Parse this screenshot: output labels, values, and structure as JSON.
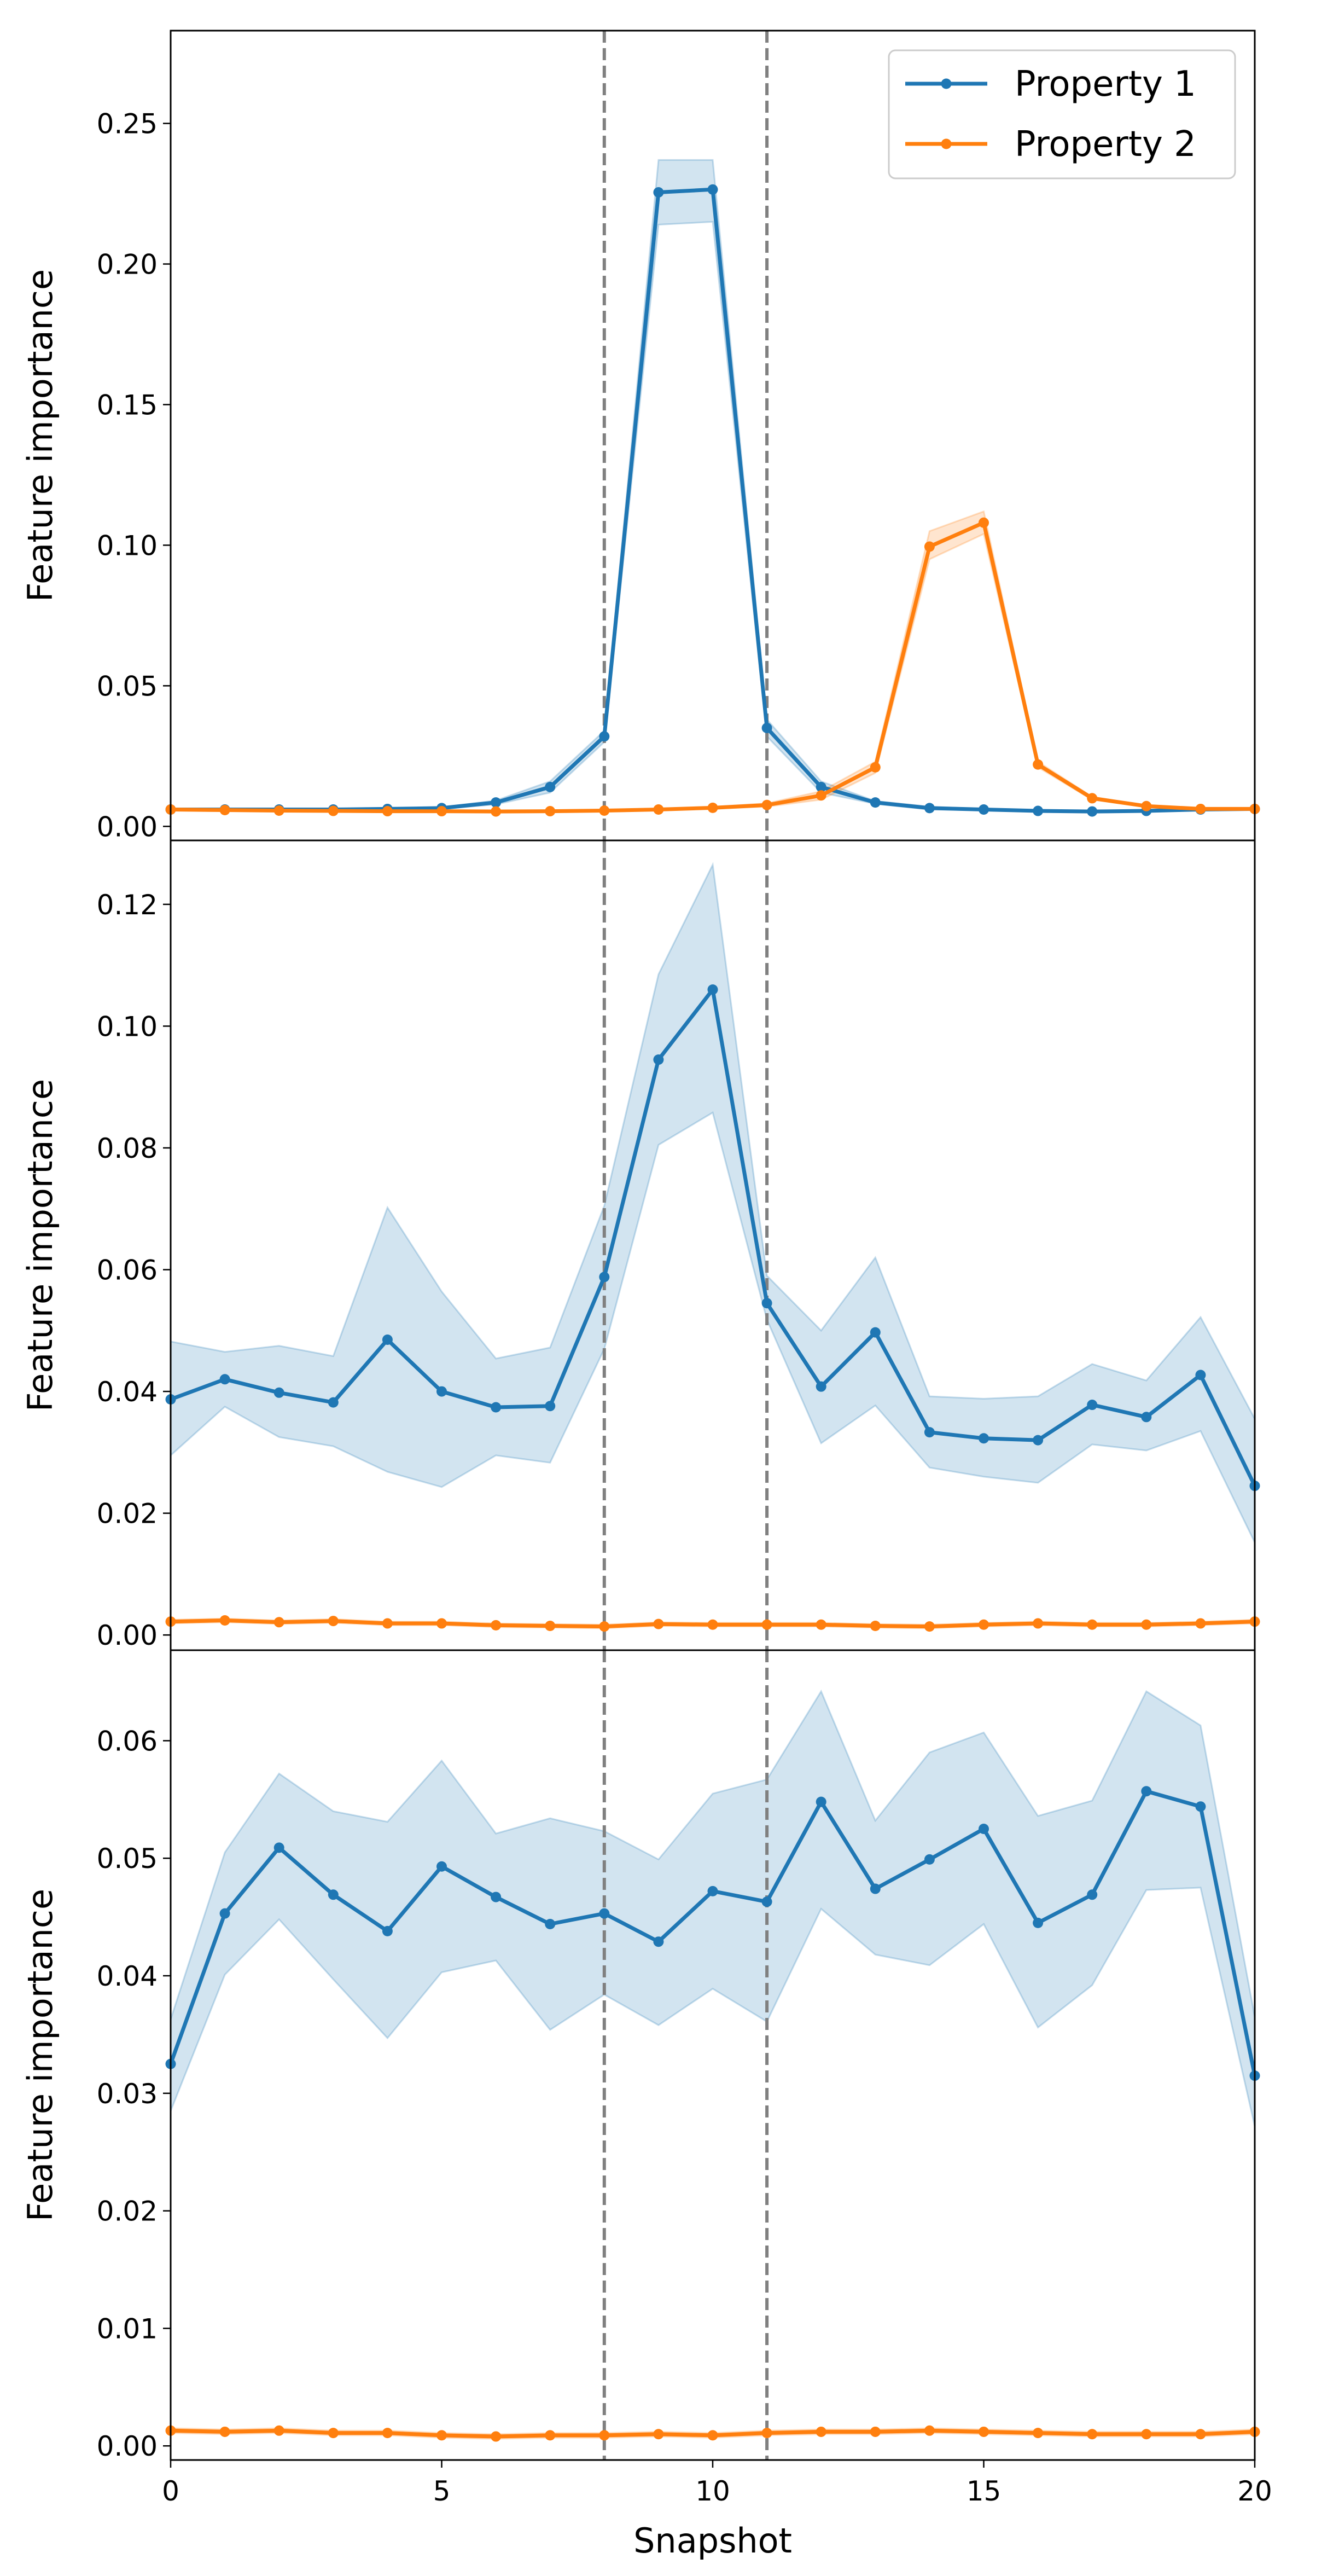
{
  "chart_data": {
    "type": "line",
    "xlabel": "Snapshot",
    "xlim": [
      0,
      20
    ],
    "x_ticks": [
      "0",
      "5",
      "10",
      "15",
      "20"
    ],
    "vertical_lines": [
      8,
      11
    ],
    "legend": {
      "location": "top-right",
      "entries": [
        {
          "label": "Property 1",
          "color": "#1f77b4"
        },
        {
          "label": "Property 2",
          "color": "#ff7f0e"
        }
      ]
    },
    "colors": {
      "series_1": "#1f77b4",
      "series_2": "#ff7f0e",
      "vline": "#808080"
    },
    "x": [
      0,
      1,
      2,
      3,
      4,
      5,
      6,
      7,
      8,
      9,
      10,
      11,
      12,
      13,
      14,
      15,
      16,
      17,
      18,
      19,
      20
    ],
    "panels": [
      {
        "ylabel": "Feature importance",
        "ylim": [
          -0.005,
          0.283
        ],
        "y_ticks": [
          "0.00",
          "0.05",
          "0.10",
          "0.15",
          "0.20",
          "0.25"
        ],
        "series": [
          {
            "name": "Property 1",
            "values": [
              0.006,
              0.006,
              0.006,
              0.006,
              0.0062,
              0.0065,
              0.0085,
              0.014,
              0.032,
              0.2255,
              0.2265,
              0.035,
              0.014,
              0.0085,
              0.0065,
              0.006,
              0.0055,
              0.0053,
              0.0055,
              0.006,
              0.0062
            ],
            "lower": [
              0.0058,
              0.0058,
              0.0058,
              0.0058,
              0.006,
              0.0062,
              0.0078,
              0.012,
              0.03,
              0.214,
              0.215,
              0.032,
              0.012,
              0.008,
              0.006,
              0.0058,
              0.0053,
              0.0051,
              0.0053,
              0.0058,
              0.006
            ],
            "upper": [
              0.0062,
              0.0062,
              0.0062,
              0.0062,
              0.0064,
              0.0068,
              0.0092,
              0.016,
              0.034,
              0.237,
              0.237,
              0.038,
              0.016,
              0.009,
              0.007,
              0.0062,
              0.0057,
              0.0055,
              0.0057,
              0.0062,
              0.0064
            ]
          },
          {
            "name": "Property 2",
            "values": [
              0.006,
              0.0058,
              0.0056,
              0.0055,
              0.0054,
              0.0054,
              0.0053,
              0.0054,
              0.0056,
              0.006,
              0.0066,
              0.0076,
              0.011,
              0.021,
              0.0995,
              0.108,
              0.022,
              0.01,
              0.0072,
              0.0062,
              0.0062
            ],
            "lower": [
              0.0058,
              0.0056,
              0.0054,
              0.0053,
              0.0052,
              0.0052,
              0.0051,
              0.0052,
              0.0054,
              0.0058,
              0.0063,
              0.007,
              0.0095,
              0.019,
              0.095,
              0.104,
              0.021,
              0.0095,
              0.007,
              0.006,
              0.006
            ],
            "upper": [
              0.0062,
              0.006,
              0.0058,
              0.0057,
              0.0056,
              0.0056,
              0.0055,
              0.0056,
              0.0058,
              0.0062,
              0.0069,
              0.0082,
              0.0125,
              0.023,
              0.105,
              0.112,
              0.023,
              0.0105,
              0.0074,
              0.0064,
              0.0064
            ]
          }
        ]
      },
      {
        "ylabel": "Feature importance",
        "ylim": [
          -0.0025,
          0.1305
        ],
        "y_ticks": [
          "0.00",
          "0.02",
          "0.04",
          "0.06",
          "0.08",
          "0.10",
          "0.12"
        ],
        "series": [
          {
            "name": "Property 1",
            "values": [
              0.0387,
              0.042,
              0.0398,
              0.0382,
              0.0485,
              0.04,
              0.0374,
              0.0376,
              0.0588,
              0.0945,
              0.106,
              0.0545,
              0.0408,
              0.0497,
              0.0333,
              0.0323,
              0.032,
              0.0378,
              0.0358,
              0.0427,
              0.0245
            ],
            "lower": [
              0.0295,
              0.0375,
              0.0325,
              0.031,
              0.0268,
              0.0243,
              0.0295,
              0.0283,
              0.047,
              0.0805,
              0.0858,
              0.0518,
              0.0315,
              0.0377,
              0.0275,
              0.026,
              0.025,
              0.0313,
              0.0303,
              0.0335,
              0.0152
            ],
            "upper": [
              0.0482,
              0.0465,
              0.0475,
              0.0458,
              0.0702,
              0.0564,
              0.0454,
              0.0472,
              0.0705,
              0.1085,
              0.1265,
              0.059,
              0.05,
              0.062,
              0.0392,
              0.0388,
              0.0392,
              0.0445,
              0.0418,
              0.0522,
              0.0355
            ]
          },
          {
            "name": "Property 2",
            "values": [
              0.0022,
              0.0024,
              0.0021,
              0.0023,
              0.0019,
              0.0019,
              0.0016,
              0.0015,
              0.0014,
              0.0018,
              0.0017,
              0.0017,
              0.0017,
              0.0015,
              0.0014,
              0.0017,
              0.0019,
              0.0017,
              0.0017,
              0.0019,
              0.0022
            ],
            "lower": [
              0.0019,
              0.0021,
              0.0018,
              0.002,
              0.0016,
              0.0016,
              0.0013,
              0.0012,
              0.0011,
              0.0015,
              0.0014,
              0.0014,
              0.0014,
              0.0012,
              0.0011,
              0.0014,
              0.0016,
              0.0014,
              0.0014,
              0.0016,
              0.0019
            ],
            "upper": [
              0.0025,
              0.0027,
              0.0024,
              0.0026,
              0.0022,
              0.0022,
              0.0019,
              0.0018,
              0.0017,
              0.0021,
              0.002,
              0.002,
              0.002,
              0.0018,
              0.0017,
              0.002,
              0.0022,
              0.002,
              0.002,
              0.0022,
              0.0025
            ]
          }
        ]
      },
      {
        "ylabel": "Feature importance",
        "ylim": [
          -0.0012,
          0.0677
        ],
        "y_ticks": [
          "0.00",
          "0.01",
          "0.02",
          "0.03",
          "0.04",
          "0.05",
          "0.06"
        ],
        "series": [
          {
            "name": "Property 1",
            "values": [
              0.0325,
              0.0453,
              0.0509,
              0.0469,
              0.0438,
              0.0493,
              0.0467,
              0.0444,
              0.0453,
              0.0429,
              0.0472,
              0.0463,
              0.0548,
              0.0474,
              0.0499,
              0.0525,
              0.0445,
              0.0469,
              0.0557,
              0.0544,
              0.0315
            ],
            "lower": [
              0.0285,
              0.0401,
              0.0448,
              0.0397,
              0.0347,
              0.0403,
              0.0413,
              0.0354,
              0.0384,
              0.0358,
              0.0389,
              0.0361,
              0.0457,
              0.0418,
              0.0409,
              0.0444,
              0.0356,
              0.0392,
              0.0473,
              0.0475,
              0.0272
            ],
            "upper": [
              0.0363,
              0.0505,
              0.0572,
              0.054,
              0.0531,
              0.0583,
              0.0521,
              0.0534,
              0.0523,
              0.0499,
              0.0555,
              0.0567,
              0.0642,
              0.0532,
              0.059,
              0.0607,
              0.0536,
              0.0549,
              0.0642,
              0.0613,
              0.0365
            ]
          },
          {
            "name": "Property 2",
            "values": [
              0.0013,
              0.0012,
              0.0013,
              0.0011,
              0.0011,
              0.0009,
              0.0008,
              0.0009,
              0.0009,
              0.001,
              0.0009,
              0.0011,
              0.0012,
              0.0012,
              0.0013,
              0.0012,
              0.0011,
              0.001,
              0.001,
              0.001,
              0.0012
            ],
            "lower": [
              0.0011,
              0.001,
              0.0011,
              0.0009,
              0.0009,
              0.0007,
              0.0006,
              0.0007,
              0.0007,
              0.0008,
              0.0007,
              0.0009,
              0.001,
              0.001,
              0.0011,
              0.001,
              0.0009,
              0.0008,
              0.0008,
              0.0008,
              0.001
            ],
            "upper": [
              0.0015,
              0.0014,
              0.0015,
              0.0013,
              0.0013,
              0.0011,
              0.001,
              0.0011,
              0.0011,
              0.0012,
              0.0011,
              0.0013,
              0.0014,
              0.0014,
              0.0015,
              0.0014,
              0.0013,
              0.0012,
              0.0012,
              0.0012,
              0.0014
            ]
          }
        ]
      }
    ]
  }
}
